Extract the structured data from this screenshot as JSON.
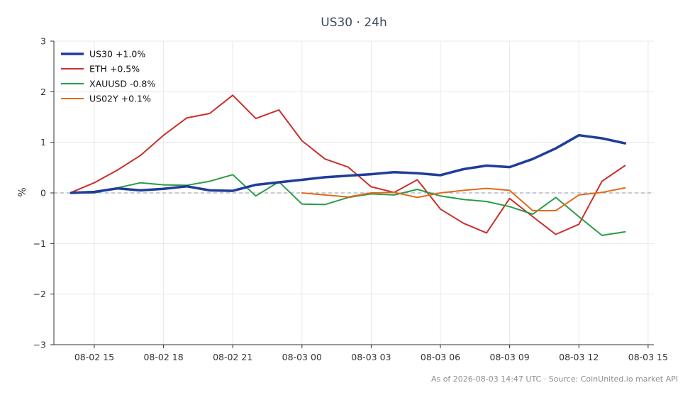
{
  "chart_data": {
    "type": "line",
    "title": "US30 · 24h",
    "ylabel": "%",
    "xlabel": "",
    "ylim": [
      -3,
      3
    ],
    "yticks": [
      3,
      2,
      1,
      0,
      -1,
      -2,
      -3
    ],
    "ytick_labels": [
      "3",
      "2",
      "1",
      "0",
      "−1",
      "−2",
      "−3"
    ],
    "xlim": [
      "2026-08-02 13:15",
      "2026-08-03 15:15"
    ],
    "xticks": [
      "2026-08-02 15:00",
      "2026-08-02 18:00",
      "2026-08-02 21:00",
      "2026-08-03 00:00",
      "2026-08-03 03:00",
      "2026-08-03 06:00",
      "2026-08-03 09:00",
      "2026-08-03 12:00",
      "2026-08-03 15:00"
    ],
    "xtick_labels": [
      "08-02 15",
      "08-02 18",
      "08-02 21",
      "08-03 00",
      "08-03 03",
      "08-03 06",
      "08-03 09",
      "08-03 12",
      "08-03 15"
    ],
    "x": [
      "2026-08-02 14:00",
      "2026-08-02 15:00",
      "2026-08-02 16:00",
      "2026-08-02 17:00",
      "2026-08-02 18:00",
      "2026-08-02 19:00",
      "2026-08-02 20:00",
      "2026-08-02 21:00",
      "2026-08-02 22:00",
      "2026-08-02 23:00",
      "2026-08-03 00:00",
      "2026-08-03 01:00",
      "2026-08-03 02:00",
      "2026-08-03 03:00",
      "2026-08-03 04:00",
      "2026-08-03 05:00",
      "2026-08-03 06:00",
      "2026-08-03 07:00",
      "2026-08-03 08:00",
      "2026-08-03 09:00",
      "2026-08-03 10:00",
      "2026-08-03 11:00",
      "2026-08-03 12:00",
      "2026-08-03 13:00",
      "2026-08-03 14:00"
    ],
    "grid": true,
    "zero_line": true,
    "legend_position": "top-left",
    "series": [
      {
        "name": "US30 +1.0%",
        "color": "#1f3d99",
        "width": 3.5,
        "values": [
          0.0,
          0.02,
          0.09,
          0.05,
          0.08,
          0.13,
          0.05,
          0.04,
          0.16,
          0.21,
          0.26,
          0.31,
          0.34,
          0.37,
          0.41,
          0.39,
          0.35,
          0.47,
          0.54,
          0.51,
          0.67,
          0.88,
          1.14,
          1.08,
          0.98
        ]
      },
      {
        "name": "ETH +0.5%",
        "color": "#c9302c",
        "width": 2,
        "values": [
          0.01,
          0.2,
          0.45,
          0.74,
          1.14,
          1.48,
          1.57,
          1.93,
          1.47,
          1.64,
          1.03,
          0.67,
          0.51,
          0.12,
          0.01,
          0.26,
          -0.32,
          -0.6,
          -0.79,
          -0.11,
          -0.47,
          -0.82,
          -0.62,
          0.23,
          0.54
        ]
      },
      {
        "name": "XAUUSD -0.8%",
        "color": "#2a9c48",
        "width": 2,
        "values": [
          0.0,
          0.0,
          0.1,
          0.2,
          0.16,
          0.15,
          0.23,
          0.36,
          -0.06,
          0.22,
          -0.22,
          -0.23,
          -0.09,
          -0.02,
          -0.04,
          0.07,
          -0.06,
          -0.13,
          -0.17,
          -0.27,
          -0.42,
          -0.09,
          -0.47,
          -0.84,
          -0.77
        ]
      },
      {
        "name": "US02Y +0.1%",
        "color": "#e06a1b",
        "width": 2,
        "values": [
          null,
          null,
          null,
          null,
          null,
          null,
          null,
          null,
          null,
          null,
          0.0,
          -0.04,
          -0.08,
          0.0,
          0.01,
          -0.09,
          0.0,
          0.05,
          0.09,
          0.05,
          -0.35,
          -0.35,
          -0.04,
          0.01,
          0.1
        ]
      }
    ]
  },
  "footer": "As of 2026-08-03 14:47 UTC · Source: CoinUnited.io market API"
}
